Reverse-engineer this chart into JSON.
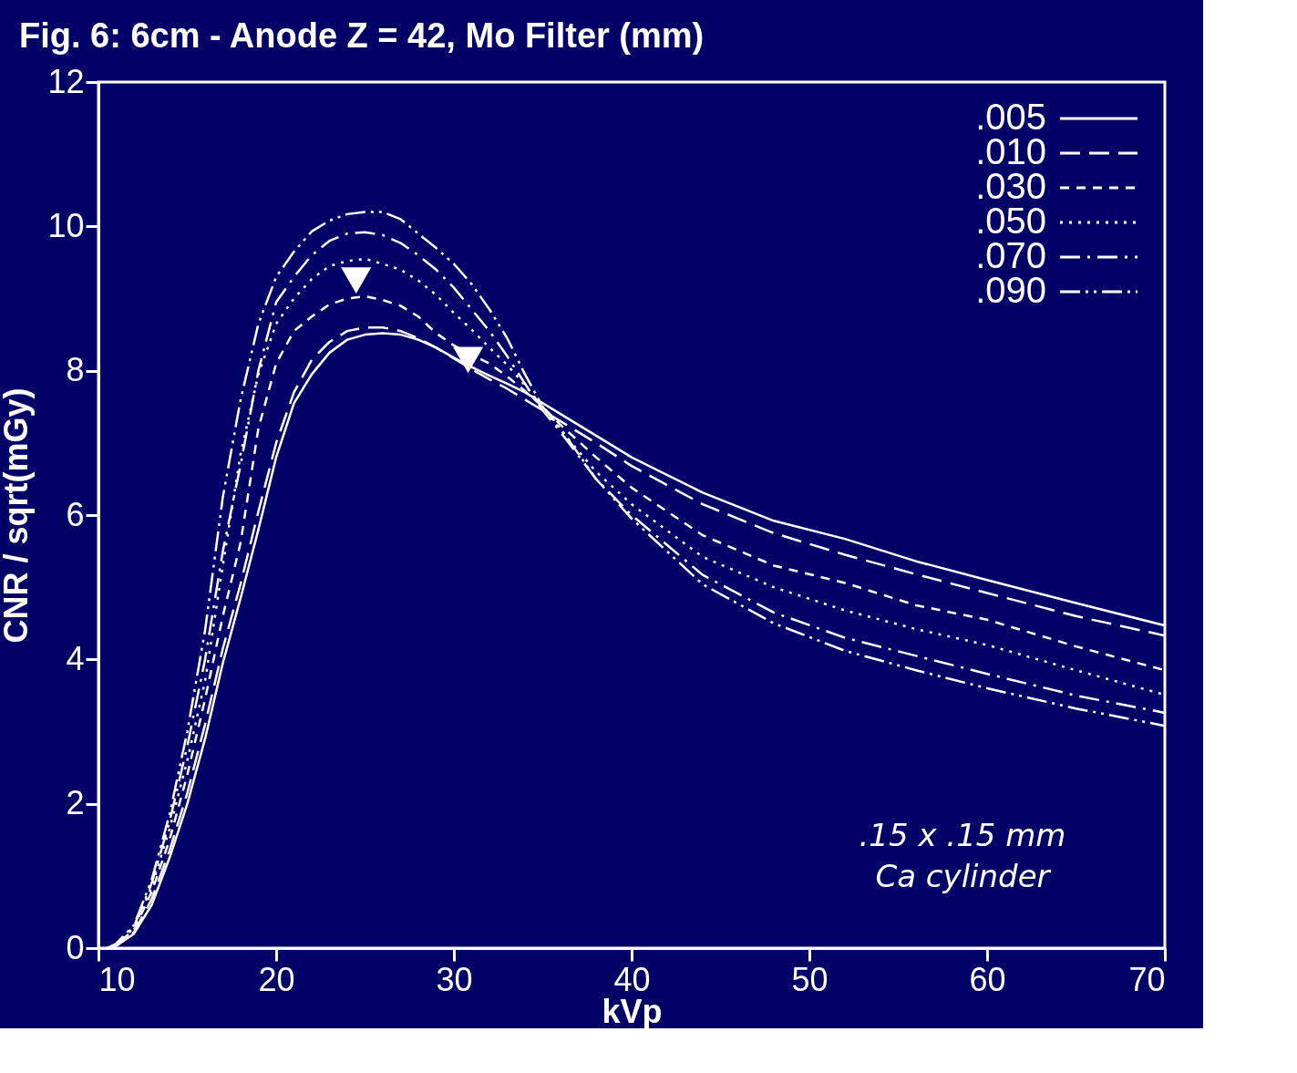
{
  "chart_data": {
    "type": "line",
    "title": "Fig. 6: 6cm - Anode Z = 42, Mo Filter (mm)",
    "xlabel": "kVp",
    "ylabel": "CNR / sqrt(mGy)",
    "x": [
      10.5,
      11,
      12,
      13,
      14,
      15,
      16,
      17,
      18,
      19,
      20,
      21,
      22,
      23,
      24,
      25,
      26,
      27,
      28,
      29,
      30,
      31,
      32,
      33,
      34,
      35,
      36,
      38,
      40,
      44,
      48,
      52,
      56,
      60,
      65,
      70
    ],
    "series": [
      {
        "name": ".005",
        "color": "#ffffff",
        "line_style": "solid",
        "values": [
          0,
          0.03,
          0.2,
          0.6,
          1.25,
          2.0,
          2.9,
          3.95,
          4.85,
          5.8,
          6.8,
          7.55,
          7.95,
          8.25,
          8.43,
          8.5,
          8.52,
          8.5,
          8.43,
          8.32,
          8.18,
          8.05,
          7.93,
          7.82,
          7.7,
          7.55,
          7.4,
          7.1,
          6.8,
          6.31,
          5.92,
          5.67,
          5.36,
          5.1,
          4.78,
          4.47
        ]
      },
      {
        "name": ".010",
        "color": "#ffffff",
        "line_style": "dashed",
        "values": [
          0,
          0.04,
          0.22,
          0.68,
          1.35,
          2.15,
          3.1,
          4.15,
          5.05,
          6.05,
          7.0,
          7.7,
          8.15,
          8.4,
          8.55,
          8.6,
          8.6,
          8.55,
          8.45,
          8.32,
          8.17,
          8.02,
          7.88,
          7.75,
          7.6,
          7.45,
          7.3,
          7.0,
          6.68,
          6.15,
          5.75,
          5.45,
          5.18,
          4.92,
          4.6,
          4.33
        ]
      },
      {
        "name": ".030",
        "color": "#ffffff",
        "line_style": "dashed",
        "values": [
          0,
          0.05,
          0.25,
          0.78,
          1.5,
          2.4,
          3.45,
          4.6,
          5.62,
          7.2,
          8.1,
          8.55,
          8.75,
          8.92,
          9.0,
          9.03,
          8.98,
          8.9,
          8.75,
          8.52,
          8.35,
          8.22,
          8.1,
          7.92,
          7.72,
          7.5,
          7.25,
          6.8,
          6.38,
          5.72,
          5.3,
          5.06,
          4.75,
          4.55,
          4.18,
          3.85
        ]
      },
      {
        "name": ".050",
        "color": "#ffffff",
        "line_style": "dotted",
        "values": [
          0,
          0.05,
          0.28,
          0.85,
          1.65,
          2.6,
          3.7,
          5.3,
          6.85,
          7.95,
          8.65,
          9.0,
          9.27,
          9.45,
          9.52,
          9.55,
          9.48,
          9.4,
          9.25,
          9.05,
          8.8,
          8.57,
          8.32,
          8.08,
          7.8,
          7.5,
          7.18,
          6.6,
          6.15,
          5.42,
          5.0,
          4.68,
          4.42,
          4.2,
          3.85,
          3.51
        ]
      },
      {
        "name": ".070",
        "color": "#ffffff",
        "line_style": "dashdot",
        "values": [
          0,
          0.06,
          0.3,
          0.9,
          1.75,
          2.8,
          4.0,
          5.5,
          6.7,
          8.0,
          8.95,
          9.3,
          9.6,
          9.8,
          9.9,
          9.92,
          9.88,
          9.77,
          9.6,
          9.4,
          9.15,
          8.85,
          8.55,
          8.2,
          7.82,
          7.45,
          7.15,
          6.5,
          6.0,
          5.17,
          4.65,
          4.3,
          4.05,
          3.8,
          3.5,
          3.26
        ]
      },
      {
        "name": ".090",
        "color": "#ffffff",
        "line_style": "dashdotdot",
        "values": [
          0,
          0.06,
          0.32,
          0.95,
          1.85,
          3.0,
          4.4,
          6.25,
          7.6,
          8.65,
          9.3,
          9.65,
          9.93,
          10.08,
          10.17,
          10.2,
          10.2,
          10.1,
          9.9,
          9.7,
          9.48,
          9.2,
          8.85,
          8.45,
          7.95,
          7.5,
          7.2,
          6.5,
          5.95,
          5.04,
          4.5,
          4.12,
          3.85,
          3.6,
          3.32,
          3.08
        ]
      },
      {
        "type": "scatter",
        "marker": "triangle",
        "color": "#ffffff",
        "x": [
          24.5,
          30.8
        ],
        "values": [
          9.25,
          8.15
        ]
      }
    ],
    "xlim": [
      10,
      70
    ],
    "xticks": [
      10,
      20,
      30,
      40,
      50,
      60,
      70
    ],
    "ylim": [
      0,
      12
    ],
    "yticks": [
      0,
      2,
      4,
      6,
      8,
      10,
      12
    ],
    "grid": false,
    "legend": "top right",
    "annotations": [
      ".15 x .15 mm",
      "Ca cylinder"
    ]
  }
}
